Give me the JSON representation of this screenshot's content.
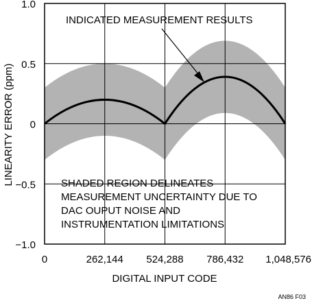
{
  "chart_data": {
    "type": "line",
    "xlabel": "DIGITAL INPUT CODE",
    "ylabel": "LINEARITY ERROR (ppm)",
    "xlim": [
      0,
      1048576
    ],
    "ylim": [
      -1.0,
      1.0
    ],
    "x_ticks": [
      0,
      262144,
      524288,
      786432,
      1048576
    ],
    "x_tick_labels": [
      "0",
      "262,144",
      "524,288",
      "786,432",
      "1,048,576"
    ],
    "y_ticks": [
      1.0,
      0.5,
      0,
      -0.5,
      -1.0
    ],
    "y_tick_labels": [
      "1.0",
      "0.5",
      "0",
      "−0.5",
      "−1.0"
    ],
    "grid": true,
    "series": [
      {
        "name": "INDICATED MEASUREMENT RESULTS",
        "x": [
          0,
          65536,
          131072,
          196608,
          262144,
          327680,
          393216,
          458752,
          524288,
          589824,
          655360,
          720896,
          786432,
          851968,
          917504,
          983040,
          1048576
        ],
        "y": [
          0,
          0.09,
          0.15,
          0.19,
          0.2,
          0.19,
          0.15,
          0.09,
          0,
          0.17,
          0.29,
          0.37,
          0.39,
          0.37,
          0.29,
          0.17,
          0
        ]
      }
    ],
    "uncertainty_band": {
      "x": [
        0,
        65536,
        131072,
        196608,
        262144,
        327680,
        393216,
        458752,
        524288,
        589824,
        655360,
        720896,
        786432,
        851968,
        917504,
        983040,
        1048576
      ],
      "upper": [
        0.3,
        0.39,
        0.45,
        0.49,
        0.5,
        0.49,
        0.45,
        0.39,
        0.3,
        0.47,
        0.59,
        0.67,
        0.69,
        0.67,
        0.59,
        0.47,
        0.3
      ],
      "lower": [
        -0.3,
        -0.21,
        -0.15,
        -0.11,
        -0.1,
        -0.11,
        -0.15,
        -0.21,
        -0.3,
        -0.13,
        -0.01,
        0.07,
        0.09,
        0.07,
        -0.01,
        -0.13,
        -0.3
      ]
    },
    "annotations": {
      "curve_label": "INDICATED MEASUREMENT RESULTS",
      "shaded_note": [
        "SHADED REGION DELINEATES",
        "MEASUREMENT UNCERTAINTY DUE TO",
        "DAC OUPUT NOISE AND",
        "INSTRUMENTATION LIMITATIONS"
      ]
    },
    "figure_id": "AN86 F03",
    "colors": {
      "band": "#b3b3b3",
      "curve": "#000000",
      "grid": "#000000"
    }
  }
}
